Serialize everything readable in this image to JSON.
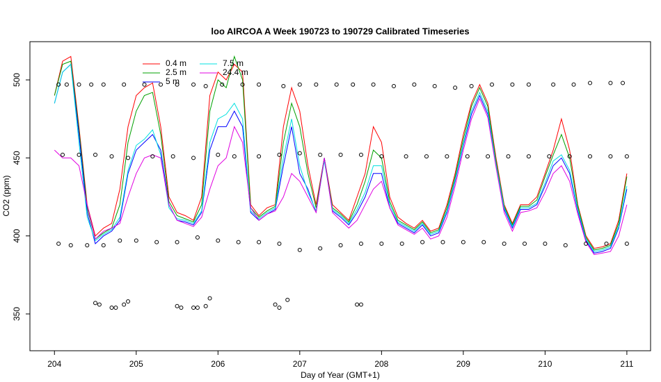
{
  "chart_data": {
    "type": "line",
    "title": "loo AIRCOA A  Week 190723 to 190729  Calibrated Timeseries",
    "x_label": "Day of Year (GMT+1)",
    "y_label": "CO2 (ppm)",
    "xlim": [
      203.7,
      211.29
    ],
    "ylim": [
      326.4,
      524.5
    ],
    "xticks": [
      204,
      205,
      206,
      207,
      208,
      209,
      210,
      211
    ],
    "yticks": [
      350,
      400,
      450,
      500
    ],
    "x": [
      204.0,
      204.1,
      204.2,
      204.3,
      204.4,
      204.5,
      204.6,
      204.7,
      204.8,
      204.9,
      205.0,
      205.1,
      205.2,
      205.3,
      205.4,
      205.5,
      205.6,
      205.7,
      205.8,
      205.9,
      206.0,
      206.1,
      206.2,
      206.3,
      206.4,
      206.5,
      206.6,
      206.7,
      206.8,
      206.9,
      207.0,
      207.1,
      207.2,
      207.3,
      207.4,
      207.5,
      207.6,
      207.7,
      207.8,
      207.9,
      208.0,
      208.1,
      208.2,
      208.3,
      208.4,
      208.5,
      208.6,
      208.7,
      208.8,
      208.9,
      209.0,
      209.1,
      209.2,
      209.3,
      209.4,
      209.5,
      209.6,
      209.7,
      209.8,
      209.9,
      210.0,
      210.1,
      210.2,
      210.3,
      210.4,
      210.5,
      210.6,
      210.7,
      210.8,
      210.9,
      211.0
    ],
    "series": [
      {
        "name": "0.4 m",
        "color": "#ff0000",
        "values": [
          490,
          512,
          515,
          470,
          420,
          400,
          405,
          408,
          430,
          470,
          490,
          495,
          498,
          470,
          425,
          415,
          413,
          410,
          425,
          490,
          505,
          500,
          510,
          505,
          420,
          413,
          418,
          420,
          470,
          495,
          480,
          445,
          420,
          450,
          420,
          415,
          410,
          425,
          440,
          470,
          460,
          425,
          412,
          408,
          405,
          410,
          403,
          405,
          420,
          440,
          465,
          485,
          497,
          485,
          450,
          420,
          408,
          420,
          420,
          425,
          440,
          455,
          475,
          455,
          420,
          400,
          392,
          393,
          395,
          410,
          440
        ]
      },
      {
        "name": "2.5 m",
        "color": "#00a000",
        "values": [
          490,
          510,
          512,
          468,
          418,
          398,
          402,
          405,
          420,
          460,
          480,
          490,
          492,
          465,
          422,
          413,
          411,
          409,
          420,
          480,
          500,
          495,
          515,
          500,
          418,
          412,
          416,
          419,
          460,
          485,
          470,
          440,
          418,
          450,
          418,
          414,
          409,
          420,
          435,
          455,
          450,
          422,
          410,
          407,
          404,
          409,
          402,
          404,
          418,
          438,
          462,
          483,
          495,
          483,
          448,
          419,
          407,
          419,
          419,
          423,
          438,
          452,
          465,
          450,
          419,
          399,
          391,
          392,
          394,
          408,
          438
        ]
      },
      {
        "name": "5 m",
        "color": "#0000ff",
        "values": [
          485,
          505,
          510,
          465,
          415,
          395,
          400,
          403,
          410,
          440,
          455,
          460,
          465,
          455,
          420,
          410,
          409,
          407,
          415,
          455,
          470,
          470,
          480,
          470,
          415,
          410,
          414,
          417,
          445,
          470,
          440,
          430,
          415,
          450,
          416,
          412,
          407,
          415,
          425,
          440,
          440,
          418,
          408,
          405,
          402,
          407,
          400,
          402,
          415,
          435,
          458,
          478,
          490,
          478,
          445,
          417,
          405,
          417,
          417,
          420,
          432,
          445,
          450,
          440,
          416,
          397,
          389,
          390,
          392,
          405,
          430
        ]
      },
      {
        "name": "7.5 m",
        "color": "#00e0e0",
        "values": [
          485,
          505,
          510,
          460,
          412,
          397,
          401,
          404,
          412,
          442,
          458,
          462,
          468,
          452,
          418,
          411,
          410,
          408,
          416,
          460,
          475,
          478,
          485,
          475,
          416,
          411,
          415,
          418,
          450,
          475,
          445,
          428,
          416,
          448,
          417,
          413,
          408,
          417,
          428,
          445,
          445,
          420,
          409,
          406,
          403,
          408,
          401,
          403,
          416,
          436,
          459,
          480,
          492,
          480,
          446,
          418,
          406,
          418,
          418,
          421,
          434,
          448,
          452,
          442,
          417,
          398,
          390,
          391,
          393,
          406,
          432
        ]
      },
      {
        "name": "24.4 m",
        "color": "#e000e0",
        "values": [
          455,
          450,
          450,
          445,
          420,
          398,
          403,
          405,
          408,
          425,
          440,
          450,
          452,
          450,
          420,
          410,
          408,
          406,
          412,
          430,
          445,
          450,
          470,
          460,
          418,
          410,
          414,
          416,
          425,
          440,
          435,
          425,
          415,
          450,
          415,
          410,
          405,
          410,
          420,
          430,
          435,
          418,
          407,
          404,
          401,
          405,
          398,
          400,
          412,
          432,
          455,
          475,
          488,
          476,
          444,
          415,
          403,
          415,
          416,
          418,
          428,
          440,
          445,
          435,
          414,
          396,
          388,
          389,
          390,
          400,
          420
        ]
      },
      {
        "color": "#000000",
        "marker": "circle",
        "x": [
          204.05,
          204.15,
          204.3,
          204.45,
          204.6,
          204.85,
          205.1,
          205.3,
          205.5,
          205.7,
          205.85,
          206.05,
          206.3,
          206.5,
          206.8,
          207.0,
          207.2,
          207.45,
          207.65,
          207.9,
          208.15,
          208.4,
          208.65,
          208.9,
          209.1,
          209.35,
          209.6,
          209.8,
          210.1,
          210.35,
          210.55,
          210.8,
          210.95,
          204.1,
          204.3,
          204.5,
          204.7,
          204.9,
          205.2,
          205.45,
          205.7,
          206.0,
          206.2,
          206.5,
          206.75,
          207.0,
          207.25,
          207.5,
          207.75,
          208.0,
          208.3,
          208.55,
          208.8,
          209.05,
          209.3,
          209.55,
          209.8,
          210.05,
          210.3,
          210.55,
          210.8,
          211.0,
          204.05,
          204.2,
          204.4,
          204.6,
          204.8,
          205.0,
          205.25,
          205.5,
          205.75,
          206.0,
          206.25,
          206.5,
          206.75,
          207.0,
          207.25,
          207.5,
          207.75,
          208.0,
          208.25,
          208.5,
          208.75,
          209.0,
          209.25,
          209.5,
          209.75,
          210.0,
          210.25,
          210.5,
          210.75,
          211.0,
          204.5,
          204.55,
          204.7,
          204.75,
          204.85,
          204.9,
          205.5,
          205.55,
          205.7,
          205.75,
          205.85,
          205.9,
          206.7,
          206.75,
          206.85,
          207.7,
          207.75
        ],
        "values": [
          497,
          497,
          497,
          497,
          497,
          497,
          497,
          497,
          497,
          497,
          496,
          497,
          497,
          497,
          496,
          497,
          497,
          497,
          497,
          497,
          496,
          497,
          496,
          495,
          496,
          497,
          497,
          497,
          497,
          497,
          498,
          498,
          498,
          452,
          452,
          452,
          451,
          450,
          451,
          451,
          450,
          452,
          451,
          451,
          452,
          453,
          452,
          452,
          452,
          451,
          451,
          451,
          451,
          451,
          451,
          451,
          451,
          451,
          451,
          451,
          451,
          451,
          395,
          394,
          394,
          394,
          397,
          397,
          396,
          396,
          399,
          397,
          396,
          396,
          395,
          391,
          392,
          394,
          395,
          395,
          395,
          396,
          396,
          396,
          396,
          395,
          395,
          395,
          394,
          395,
          395,
          395,
          357,
          356,
          354,
          354,
          356,
          358,
          355,
          354,
          354,
          354,
          355,
          360,
          356,
          354,
          359,
          356,
          356
        ]
      }
    ]
  }
}
